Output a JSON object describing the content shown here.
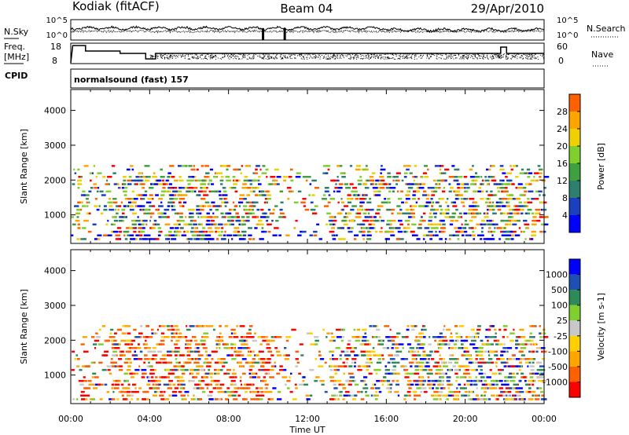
{
  "header": {
    "station": "Kodiak (fitACF)",
    "beam": "Beam 04",
    "date": "29/Apr/2010"
  },
  "noise_panel": {
    "left_label": "N.Sky",
    "right_label": "N.Search",
    "left_ticks": [
      "10^5",
      "10^0"
    ],
    "right_ticks": [
      "10^5",
      "10^0"
    ]
  },
  "freq_panel": {
    "left_label_1": "Freq.",
    "left_label_2": "[MHz]",
    "right_label": "Nave",
    "left_ticks": [
      "18",
      "8"
    ],
    "right_ticks": [
      "60",
      "0"
    ]
  },
  "cpid": {
    "label": "CPID",
    "program": "normalsound (fast) 157"
  },
  "colors": {
    "power": [
      "#0000ff",
      "#1a3fbf",
      "#2e7f6e",
      "#3fa03f",
      "#7fcf2f",
      "#f0d000",
      "#ffa500",
      "#ff6000",
      "#ff0000"
    ],
    "velocity": [
      "#0000ff",
      "#1e50b4",
      "#2e8b57",
      "#7fcf2f",
      "#c8c8c8",
      "#ffd000",
      "#ffa500",
      "#ff6000",
      "#ff0000"
    ]
  },
  "chart_data": [
    {
      "type": "heatmap",
      "name": "power",
      "ylabel": "Slant Range [km]",
      "yticks": [
        "1000",
        "2000",
        "3000",
        "4000"
      ],
      "ylim": [
        180,
        4600
      ],
      "xlim": [
        0,
        24
      ],
      "colorbar": {
        "label": "Power [dB]",
        "ticks": [
          "4",
          "8",
          "12",
          "16",
          "20",
          "24",
          "28"
        ],
        "range": [
          0,
          32
        ]
      }
    },
    {
      "type": "heatmap",
      "name": "velocity",
      "ylabel": "Slant Range [km]",
      "yticks": [
        "1000",
        "2000",
        "3000",
        "4000"
      ],
      "ylim": [
        180,
        4600
      ],
      "xlim": [
        0,
        24
      ],
      "colorbar": {
        "label": "Velocity [m s-1]",
        "ticks": [
          "1000",
          "500",
          "100",
          "25",
          "-25",
          "-100",
          "-500",
          "-1000"
        ]
      }
    }
  ],
  "xaxis": {
    "label": "Time UT",
    "ticks": [
      "00:00",
      "04:00",
      "08:00",
      "12:00",
      "16:00",
      "20:00",
      "00:00"
    ]
  }
}
